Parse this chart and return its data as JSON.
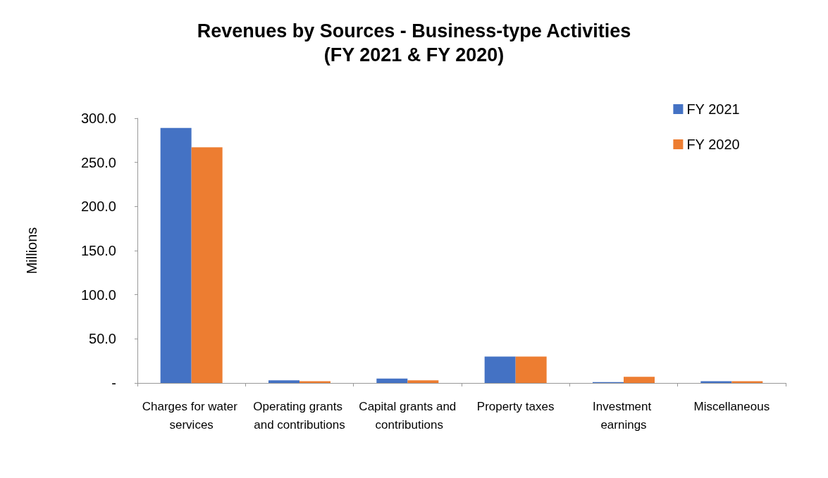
{
  "chart_data": {
    "type": "bar",
    "title": "Revenues by Sources - Business-type Activities\n(FY 2021 & FY 2020)",
    "ylabel": "Millions",
    "categories": [
      "Charges for water services",
      "Operating grants and contributions",
      "Capital grants and contributions",
      "Property taxes",
      "Investment earnings",
      "Miscellaneous"
    ],
    "series": [
      {
        "name": "FY 2021",
        "color": "#4472c4",
        "values": [
          289,
          3,
          5,
          30,
          1,
          2
        ]
      },
      {
        "name": "FY 2020",
        "color": "#ed7d31",
        "values": [
          267,
          2,
          3,
          30,
          7,
          2
        ]
      }
    ],
    "ylim": [
      0,
      300
    ],
    "yticks": [
      {
        "value": 0,
        "label": "-"
      },
      {
        "value": 50,
        "label": "50.0"
      },
      {
        "value": 100,
        "label": "100.0"
      },
      {
        "value": 150,
        "label": "150.0"
      },
      {
        "value": 200,
        "label": "200.0"
      },
      {
        "value": 250,
        "label": "250.0"
      },
      {
        "value": 300,
        "label": "300.0"
      }
    ],
    "grid": false,
    "legend": "top right"
  }
}
